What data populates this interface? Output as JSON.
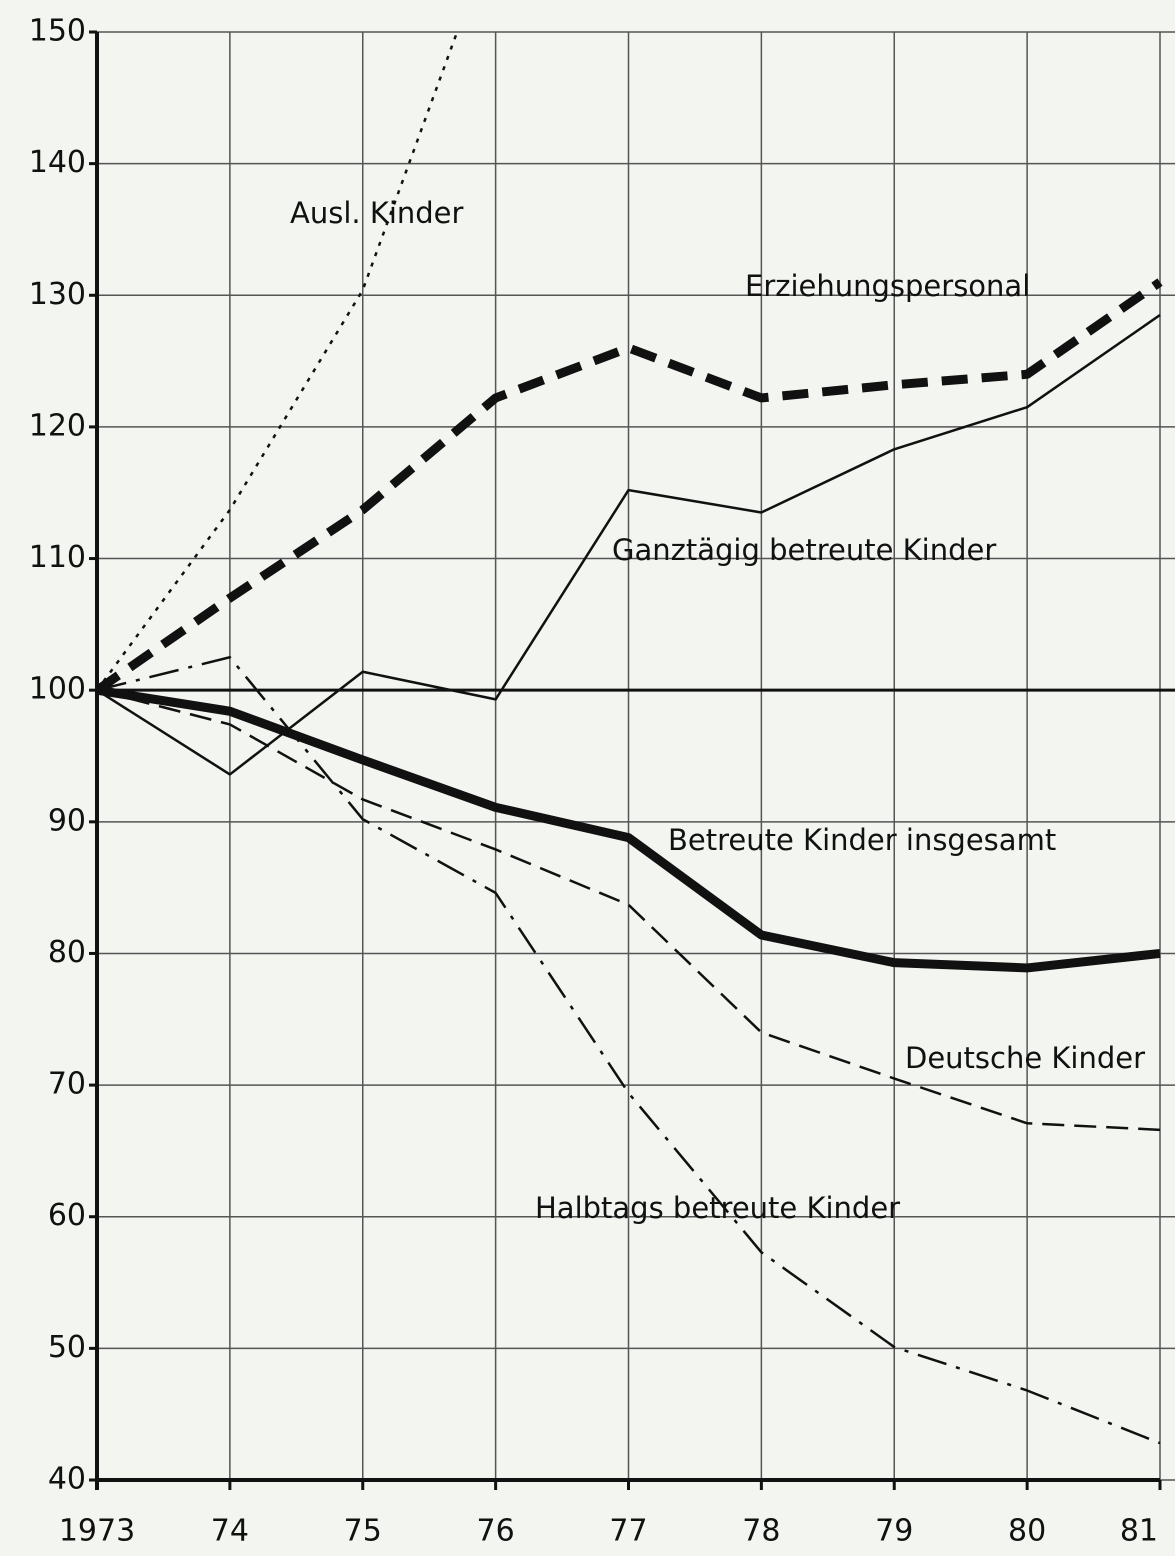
{
  "chart_data": {
    "type": "line",
    "categories": [
      "1973",
      "74",
      "75",
      "76",
      "77",
      "78",
      "79",
      "80",
      "81"
    ],
    "ylim": [
      40,
      150
    ],
    "yticks": [
      40,
      50,
      60,
      70,
      80,
      90,
      100,
      110,
      120,
      130,
      140,
      150
    ],
    "grid": true,
    "series": [
      {
        "name": "Ausl. Kinder",
        "color": "#111111",
        "style": "dotted",
        "width": 2.5,
        "values": [
          100,
          113.7,
          130.4,
          158,
          null,
          null,
          null,
          null,
          null
        ]
      },
      {
        "name": "Erziehungspersonal",
        "color": "#111111",
        "style": "dashed-bold",
        "width": 9,
        "values": [
          100,
          107,
          113.7,
          122.2,
          126,
          122.2,
          123.2,
          124,
          131
        ]
      },
      {
        "name": "Ganztägig betreute Kinder",
        "color": "#111111",
        "style": "solid",
        "width": 2.5,
        "values": [
          100,
          93.6,
          101.4,
          99.3,
          115.2,
          113.5,
          118.3,
          121.5,
          128.5
        ]
      },
      {
        "name": "Betreute Kinder insgesamt",
        "color": "#111111",
        "style": "solid",
        "width": 9,
        "values": [
          100,
          98.4,
          94.7,
          91.1,
          88.8,
          81.4,
          79.3,
          78.9,
          80
        ]
      },
      {
        "name": "Deutsche Kinder",
        "color": "#111111",
        "style": "dashed",
        "width": 2.5,
        "values": [
          100,
          97.4,
          91.7,
          87.9,
          83.7,
          74,
          70.5,
          67.1,
          66.6
        ]
      },
      {
        "name": "Halbtags betreute Kinder",
        "color": "#111111",
        "style": "dashdot",
        "width": 2.5,
        "values": [
          100,
          102.5,
          90.2,
          84.6,
          69.4,
          57.3,
          50.1,
          46.8,
          42.8
        ]
      }
    ]
  }
}
